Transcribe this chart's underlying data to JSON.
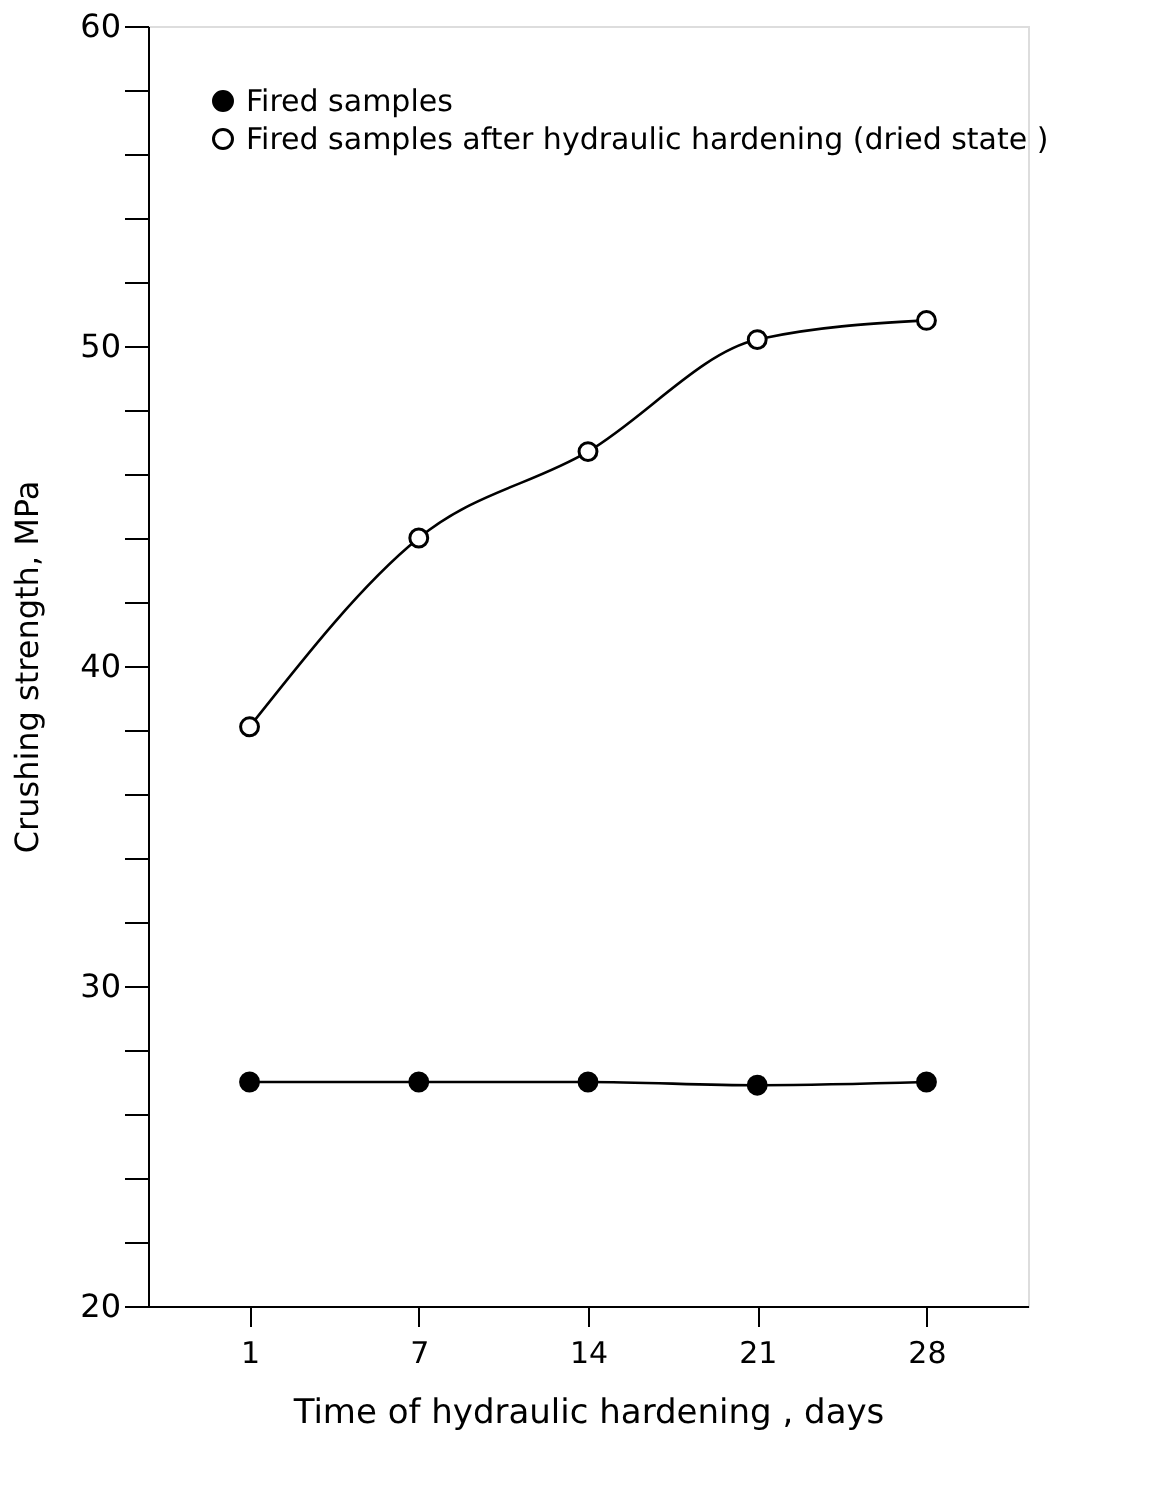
{
  "chart_data": {
    "type": "line",
    "xlabel": "Time of hydraulic hardening , days",
    "ylabel": "Crushing strength, MPa",
    "categories": [
      "1",
      "7",
      "14",
      "21",
      "28"
    ],
    "series": [
      {
        "name": "Fired samples",
        "color": "#000000",
        "values": [
          27.0,
          27.0,
          27.0,
          26.9,
          27.0
        ]
      },
      {
        "name": "Fired samples after hydraulic hardening (dried state )",
        "color": "#ffffff",
        "values": [
          38.1,
          44.0,
          46.7,
          50.2,
          50.8
        ]
      }
    ],
    "ylim": [
      20,
      60
    ],
    "yticks": [
      20,
      {
        "value": 22,
        "label": null
      },
      {
        "value": 24,
        "label": null
      },
      {
        "value": 26,
        "label": null
      },
      {
        "value": 28,
        "label": null
      },
      30,
      {
        "value": 32,
        "label": null
      },
      {
        "value": 34,
        "label": null
      },
      {
        "value": 36,
        "label": null
      },
      {
        "value": 38,
        "label": null
      },
      40,
      {
        "value": 42,
        "label": null
      },
      {
        "value": 44,
        "label": null
      },
      {
        "value": 46,
        "label": null
      },
      {
        "value": 48,
        "label": null
      },
      50,
      {
        "value": 52,
        "label": null
      },
      {
        "value": 54,
        "label": null
      },
      {
        "value": 56,
        "label": null
      },
      {
        "value": 58,
        "label": null
      },
      60
    ],
    "grid": false,
    "legend": "top left",
    "marker": "circle",
    "line_style": "solid"
  }
}
